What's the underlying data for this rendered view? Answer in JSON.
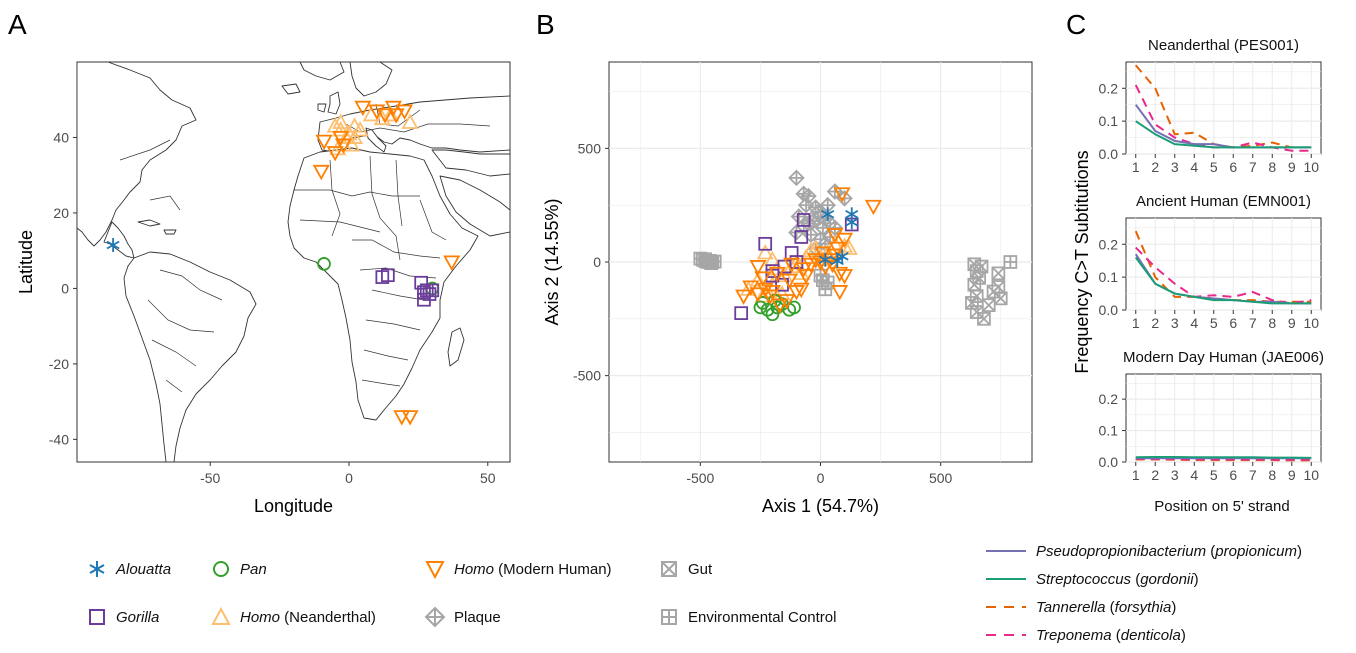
{
  "panels": {
    "a": {
      "letter": "A",
      "xlabel": "Longitude",
      "ylabel": "Latitude",
      "xticks": [
        "-50",
        "0",
        "50"
      ],
      "yticks": [
        "40",
        "20",
        "0",
        "-20",
        "-40"
      ]
    },
    "b": {
      "letter": "B",
      "xlabel": "Axis 1 (54.7%)",
      "ylabel": "Axis 2 (14.55%)",
      "xticks": [
        "-500",
        "0",
        "500"
      ],
      "yticks": [
        "500",
        "0",
        "-500"
      ]
    },
    "c": {
      "letter": "C",
      "ylabel": "Frequency C>T Subtitutions",
      "xlabel": "Position on 5' strand",
      "yticks": [
        "0.2",
        "0.1",
        "0.0"
      ],
      "xticks": [
        "1",
        "2",
        "3",
        "4",
        "5",
        "6",
        "7",
        "8",
        "9",
        "10"
      ]
    }
  },
  "legend": {
    "alouatta": "Alouatta",
    "gorilla": "Gorilla",
    "pan": "Pan",
    "homo": "Homo",
    "neanderthal_suffix": " (Neanderthal)",
    "modern_suffix": " (Modern Human)",
    "plaque": "Plaque",
    "gut": "Gut",
    "env": "Environmental Control"
  },
  "line_legend": [
    {
      "genus": "Pseudopropionibacterium",
      "species": "propionicum",
      "color": "#7570b3",
      "dash": false
    },
    {
      "genus": "Streptococcus",
      "species": "gordonii",
      "color": "#1b9e77",
      "dash": false
    },
    {
      "genus": "Tannerella",
      "species": "forsythia",
      "color": "#e66101",
      "dash": true
    },
    {
      "genus": "Treponema",
      "species": "denticola",
      "color": "#e7298a",
      "dash": true
    }
  ],
  "colors": {
    "alouatta": "#1f78b4",
    "gorilla": "#6a3d9a",
    "pan": "#33a02c",
    "neanderthal": "#fdbf6f",
    "modern": "#ff7f00",
    "grey": "#a6a6a6"
  },
  "chart_data": [
    {
      "type": "scatter",
      "panel": "A",
      "xlabel": "Longitude",
      "ylabel": "Latitude",
      "xlim": [
        -98,
        58
      ],
      "ylim": [
        -46,
        60
      ],
      "series": [
        {
          "name": "Alouatta",
          "points": [
            [
              -85,
              11.5
            ]
          ]
        },
        {
          "name": "Pan",
          "points": [
            [
              -9,
              6.5
            ],
            [
              30,
              0
            ]
          ]
        },
        {
          "name": "Gorilla",
          "points": [
            [
              12,
              3
            ],
            [
              14,
              3.5
            ],
            [
              26,
              1.5
            ],
            [
              27,
              -1
            ],
            [
              28,
              -0.5
            ],
            [
              29,
              -1.5
            ],
            [
              30,
              -0.5
            ],
            [
              27,
              -3
            ]
          ]
        },
        {
          "name": "Homo (Neanderthal)",
          "points": [
            [
              -5,
              43
            ],
            [
              -3,
              42
            ],
            [
              -1,
              40
            ],
            [
              0,
              41
            ],
            [
              2,
              43
            ],
            [
              -4,
              37
            ],
            [
              -2,
              38
            ],
            [
              -3,
              44
            ],
            [
              1,
              38
            ],
            [
              2,
              40
            ],
            [
              4,
              42
            ],
            [
              8,
              46
            ],
            [
              12,
              45
            ],
            [
              15,
              46
            ],
            [
              22,
              44
            ]
          ]
        },
        {
          "name": "Homo (Modern Human)",
          "points": [
            [
              -9,
              39
            ],
            [
              -5,
              36
            ],
            [
              -2,
              38
            ],
            [
              -3,
              40
            ],
            [
              -10,
              31
            ],
            [
              5,
              48
            ],
            [
              10,
              47
            ],
            [
              13,
              46
            ],
            [
              16,
              48
            ],
            [
              17,
              46
            ],
            [
              20,
              47
            ],
            [
              37,
              7
            ],
            [
              19,
              -34
            ],
            [
              22,
              -34
            ]
          ]
        }
      ]
    },
    {
      "type": "scatter",
      "panel": "B",
      "xlabel": "Axis 1 (54.7%)",
      "ylabel": "Axis 2 (14.55%)",
      "xlim": [
        -880,
        880
      ],
      "ylim": [
        -880,
        880
      ],
      "series": [
        {
          "name": "Alouatta",
          "points": [
            [
              130,
              210
            ],
            [
              130,
              175
            ],
            [
              30,
              210
            ],
            [
              20,
              10
            ],
            [
              70,
              5
            ],
            [
              90,
              25
            ]
          ]
        },
        {
          "name": "Gorilla",
          "points": [
            [
              -330,
              -225
            ],
            [
              -200,
              -60
            ],
            [
              -230,
              80
            ],
            [
              -150,
              -20
            ],
            [
              -100,
              0
            ],
            [
              -80,
              110
            ],
            [
              -70,
              185
            ],
            [
              130,
              165
            ],
            [
              -200,
              -40
            ],
            [
              -120,
              40
            ],
            [
              -160,
              -100
            ]
          ]
        },
        {
          "name": "Pan",
          "points": [
            [
              -250,
              -200
            ],
            [
              -220,
              -210
            ],
            [
              -200,
              -230
            ],
            [
              -180,
              -200
            ],
            [
              -160,
              -185
            ],
            [
              -130,
              -210
            ],
            [
              -110,
              -200
            ],
            [
              -240,
              -180
            ],
            [
              -190,
              -170
            ]
          ]
        },
        {
          "name": "Homo (Neanderthal)",
          "points": [
            [
              -230,
              40
            ],
            [
              -200,
              10
            ],
            [
              -180,
              -30
            ],
            [
              -150,
              -60
            ],
            [
              -120,
              -20
            ],
            [
              -100,
              -5
            ],
            [
              -80,
              -50
            ],
            [
              -60,
              20
            ],
            [
              -40,
              50
            ],
            [
              -20,
              60
            ],
            [
              0,
              10
            ],
            [
              30,
              40
            ],
            [
              60,
              80
            ],
            [
              100,
              70
            ],
            [
              120,
              60
            ],
            [
              -260,
              -80
            ],
            [
              -300,
              -120
            ],
            [
              -240,
              -150
            ],
            [
              -200,
              -100
            ],
            [
              -220,
              -130
            ],
            [
              -160,
              -140
            ]
          ]
        },
        {
          "name": "Homo (Modern Human)",
          "points": [
            [
              -320,
              -150
            ],
            [
              -290,
              -110
            ],
            [
              -260,
              -20
            ],
            [
              -240,
              -70
            ],
            [
              -210,
              -150
            ],
            [
              -170,
              -190
            ],
            [
              -130,
              -80
            ],
            [
              -100,
              -130
            ],
            [
              -70,
              -30
            ],
            [
              -40,
              -10
            ],
            [
              -20,
              10
            ],
            [
              0,
              0
            ],
            [
              20,
              -20
            ],
            [
              40,
              10
            ],
            [
              60,
              30
            ],
            [
              80,
              -50
            ],
            [
              100,
              -60
            ],
            [
              90,
              300
            ],
            [
              220,
              245
            ],
            [
              80,
              -130
            ],
            [
              100,
              100
            ],
            [
              60,
              120
            ],
            [
              -200,
              -130
            ],
            [
              -140,
              -170
            ],
            [
              -180,
              -50
            ],
            [
              -260,
              -140
            ],
            [
              -120,
              -10
            ],
            [
              -60,
              -60
            ],
            [
              10,
              40
            ],
            [
              50,
              -10
            ],
            [
              70,
              60
            ],
            [
              -80,
              -120
            ],
            [
              -230,
              -120
            ]
          ]
        },
        {
          "name": "Plaque",
          "points": [
            [
              -100,
              370
            ],
            [
              -70,
              300
            ],
            [
              -50,
              290
            ],
            [
              -60,
              250
            ],
            [
              -20,
              240
            ],
            [
              -10,
              220
            ],
            [
              0,
              200
            ],
            [
              20,
              190
            ],
            [
              40,
              170
            ],
            [
              60,
              150
            ],
            [
              60,
              310
            ],
            [
              100,
              280
            ],
            [
              -30,
              180
            ],
            [
              -70,
              160
            ],
            [
              -100,
              130
            ],
            [
              -40,
              120
            ],
            [
              0,
              100
            ],
            [
              20,
              80
            ],
            [
              -20,
              60
            ],
            [
              10,
              150
            ],
            [
              30,
              250
            ],
            [
              -50,
              170
            ],
            [
              -90,
              200
            ],
            [
              40,
              110
            ]
          ]
        },
        {
          "name": "Gut",
          "points": [
            [
              640,
              -10
            ],
            [
              650,
              -40
            ],
            [
              660,
              -70
            ],
            [
              640,
              -100
            ],
            [
              630,
              -180
            ],
            [
              650,
              -220
            ],
            [
              680,
              -250
            ],
            [
              700,
              -190
            ],
            [
              720,
              -130
            ],
            [
              740,
              -110
            ],
            [
              750,
              -160
            ],
            [
              740,
              -50
            ],
            [
              650,
              -150
            ],
            [
              670,
              -20
            ]
          ]
        },
        {
          "name": "Environmental Control",
          "points": [
            [
              -500,
              15
            ],
            [
              -490,
              10
            ],
            [
              -480,
              5
            ],
            [
              -470,
              0
            ],
            [
              -460,
              5
            ],
            [
              -450,
              0
            ],
            [
              -440,
              2
            ],
            [
              -480,
              12
            ],
            [
              -455,
              -5
            ],
            [
              790,
              0
            ],
            [
              10,
              -80
            ],
            [
              20,
              -120
            ],
            [
              0,
              -60
            ],
            [
              30,
              -90
            ]
          ]
        }
      ]
    },
    {
      "type": "line",
      "panel": "C",
      "title": "Neanderthal (PES001)",
      "x": [
        1,
        2,
        3,
        4,
        5,
        6,
        7,
        8,
        9,
        10
      ],
      "ylim": [
        0,
        0.28
      ],
      "ylabel": "Frequency C>T Subtitutions",
      "xlabel": "Position on 5' strand",
      "series": [
        {
          "name": "Pseudopropionibacterium (propionicum)",
          "values": [
            0.15,
            0.07,
            0.04,
            0.03,
            0.03,
            0.02,
            0.02,
            0.02,
            0.02,
            0.02
          ]
        },
        {
          "name": "Streptococcus (gordonii)",
          "values": [
            0.1,
            0.06,
            0.03,
            0.025,
            0.02,
            0.02,
            0.02,
            0.02,
            0.02,
            0.02
          ]
        },
        {
          "name": "Tannerella (forsythia)",
          "values": [
            0.27,
            0.2,
            0.06,
            0.065,
            0.03,
            0.02,
            0.025,
            0.035,
            0.02,
            0.02
          ]
        },
        {
          "name": "Treponema (denticola)",
          "values": [
            0.21,
            0.09,
            0.05,
            0.03,
            0.02,
            0.02,
            0.035,
            0.02,
            0.01,
            0.01
          ]
        }
      ]
    },
    {
      "type": "line",
      "panel": "C",
      "title": "Ancient Human (EMN001)",
      "x": [
        1,
        2,
        3,
        4,
        5,
        6,
        7,
        8,
        9,
        10
      ],
      "ylim": [
        0,
        0.28
      ],
      "series": [
        {
          "name": "Pseudopropionibacterium (propionicum)",
          "values": [
            0.17,
            0.08,
            0.05,
            0.04,
            0.035,
            0.03,
            0.025,
            0.025,
            0.02,
            0.02
          ]
        },
        {
          "name": "Streptococcus (gordonii)",
          "values": [
            0.16,
            0.08,
            0.05,
            0.04,
            0.03,
            0.03,
            0.025,
            0.02,
            0.02,
            0.02
          ]
        },
        {
          "name": "Tannerella (forsythia)",
          "values": [
            0.24,
            0.1,
            0.04,
            0.04,
            0.035,
            0.03,
            0.03,
            0.025,
            0.025,
            0.025
          ]
        },
        {
          "name": "Treponema (denticola)",
          "values": [
            0.19,
            0.13,
            0.08,
            0.04,
            0.045,
            0.04,
            0.055,
            0.03,
            0.02,
            0.03
          ]
        }
      ]
    },
    {
      "type": "line",
      "panel": "C",
      "title": "Modern Day Human (JAE006)",
      "x": [
        1,
        2,
        3,
        4,
        5,
        6,
        7,
        8,
        9,
        10
      ],
      "ylim": [
        0,
        0.28
      ],
      "series": [
        {
          "name": "Pseudopropionibacterium (propionicum)",
          "values": [
            0.012,
            0.012,
            0.012,
            0.012,
            0.012,
            0.012,
            0.012,
            0.012,
            0.012,
            0.012
          ]
        },
        {
          "name": "Streptococcus (gordonii)",
          "values": [
            0.015,
            0.016,
            0.016,
            0.015,
            0.015,
            0.015,
            0.015,
            0.014,
            0.014,
            0.013
          ]
        },
        {
          "name": "Tannerella (forsythia)",
          "values": [
            0.008,
            0.008,
            0.007,
            0.006,
            0.006,
            0.006,
            0.006,
            0.006,
            0.005,
            0.005
          ]
        },
        {
          "name": "Treponema (denticola)",
          "values": [
            0.01,
            0.009,
            0.009,
            0.008,
            0.008,
            0.008,
            0.008,
            0.007,
            0.007,
            0.007
          ]
        }
      ]
    }
  ]
}
